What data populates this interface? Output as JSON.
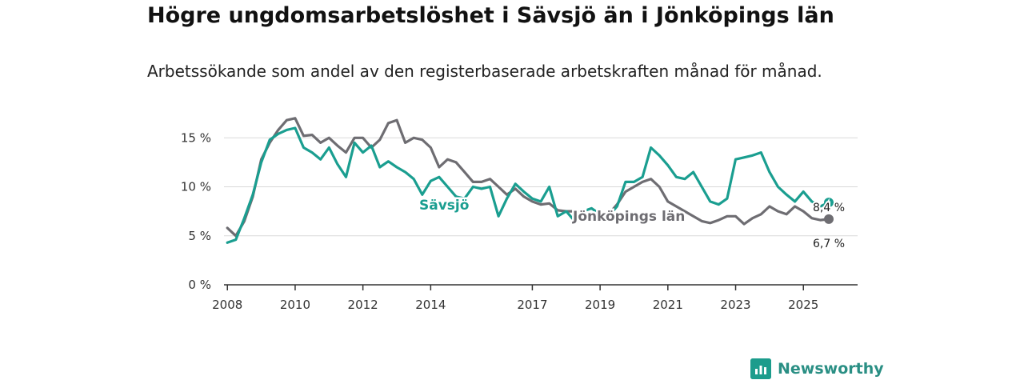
{
  "chart_data": {
    "type": "line",
    "title": "Högre ungdomsarbetslöshet i Sävsjö än i Jönköpings län",
    "subtitle": "Arbetssökande som andel av den registerbaserade arbetskraften månad för månad.",
    "xlabel": "",
    "ylabel": "",
    "xlim": [
      2007.9,
      2026.6
    ],
    "ylim": [
      0,
      16
    ],
    "x_ticks": [
      {
        "value": 2008,
        "label": "2008"
      },
      {
        "value": 2010,
        "label": "2010"
      },
      {
        "value": 2012,
        "label": "2012"
      },
      {
        "value": 2014,
        "label": "2014"
      },
      {
        "value": 2017,
        "label": "2017"
      },
      {
        "value": 2019,
        "label": "2019"
      },
      {
        "value": 2021,
        "label": "2021"
      },
      {
        "value": 2023,
        "label": "2023"
      },
      {
        "value": 2025,
        "label": "2025"
      }
    ],
    "y_ticks": [
      {
        "value": 0,
        "label": "0 %"
      },
      {
        "value": 5,
        "label": "5 %"
      },
      {
        "value": 10,
        "label": "10 %"
      },
      {
        "value": 15,
        "label": "15 %"
      }
    ],
    "series": [
      {
        "name": "Sävsjö",
        "color": "#1a9e90",
        "end_label": "8,4 %",
        "x": [
          2008.0,
          2008.25,
          2008.5,
          2008.75,
          2009.0,
          2009.25,
          2009.5,
          2009.75,
          2010.0,
          2010.25,
          2010.5,
          2010.75,
          2011.0,
          2011.25,
          2011.5,
          2011.75,
          2012.0,
          2012.25,
          2012.5,
          2012.75,
          2013.0,
          2013.25,
          2013.5,
          2013.75,
          2014.0,
          2014.25,
          2014.5,
          2014.75,
          2015.0,
          2015.25,
          2015.5,
          2015.75,
          2016.0,
          2016.25,
          2016.5,
          2016.75,
          2017.0,
          2017.25,
          2017.5,
          2017.75,
          2018.0,
          2018.25,
          2018.5,
          2018.75,
          2019.0,
          2019.25,
          2019.5,
          2019.75,
          2020.0,
          2020.25,
          2020.5,
          2020.75,
          2021.0,
          2021.25,
          2021.5,
          2021.75,
          2022.0,
          2022.25,
          2022.5,
          2022.75,
          2023.0,
          2023.25,
          2023.5,
          2023.75,
          2024.0,
          2024.25,
          2024.5,
          2024.75,
          2025.0,
          2025.25,
          2025.5,
          2025.75
        ],
        "y": [
          4.3,
          4.6,
          6.8,
          9.2,
          12.5,
          14.8,
          15.4,
          15.8,
          16.0,
          14.0,
          13.5,
          12.8,
          14.0,
          12.3,
          11.0,
          14.5,
          13.5,
          14.2,
          12.0,
          12.6,
          12.0,
          11.5,
          10.8,
          9.2,
          10.6,
          11.0,
          10.0,
          9.0,
          8.8,
          10.0,
          9.8,
          10.0,
          7.0,
          8.8,
          10.3,
          9.5,
          8.8,
          8.5,
          10.0,
          7.0,
          7.5,
          6.5,
          7.5,
          7.8,
          7.2,
          7.0,
          8.0,
          10.5,
          10.5,
          11.0,
          14.0,
          13.2,
          12.2,
          11.0,
          10.8,
          11.5,
          10.0,
          8.5,
          8.2,
          8.8,
          12.8,
          13.0,
          13.2,
          13.5,
          11.5,
          10.0,
          9.2,
          8.5,
          9.5,
          8.5,
          8.0,
          8.4
        ]
      },
      {
        "name": "Jönköpings län",
        "color": "#6e6d72",
        "end_label": "6,7 %",
        "x": [
          2008.0,
          2008.25,
          2008.5,
          2008.75,
          2009.0,
          2009.25,
          2009.5,
          2009.75,
          2010.0,
          2010.25,
          2010.5,
          2010.75,
          2011.0,
          2011.25,
          2011.5,
          2011.75,
          2012.0,
          2012.25,
          2012.5,
          2012.75,
          2013.0,
          2013.25,
          2013.5,
          2013.75,
          2014.0,
          2014.25,
          2014.5,
          2014.75,
          2015.0,
          2015.25,
          2015.5,
          2015.75,
          2016.0,
          2016.25,
          2016.5,
          2016.75,
          2017.0,
          2017.25,
          2017.5,
          2017.75,
          2018.0,
          2018.25,
          2018.5,
          2018.75,
          2019.0,
          2019.25,
          2019.5,
          2019.75,
          2020.0,
          2020.25,
          2020.5,
          2020.75,
          2021.0,
          2021.25,
          2021.5,
          2021.75,
          2022.0,
          2022.25,
          2022.5,
          2022.75,
          2023.0,
          2023.25,
          2023.5,
          2023.75,
          2024.0,
          2024.25,
          2024.5,
          2024.75,
          2025.0,
          2025.25,
          2025.5,
          2025.75
        ],
        "y": [
          5.8,
          5.0,
          6.5,
          9.0,
          12.8,
          14.5,
          15.8,
          16.8,
          17.0,
          15.2,
          15.3,
          14.5,
          15.0,
          14.2,
          13.5,
          15.0,
          15.0,
          14.0,
          14.8,
          16.5,
          16.8,
          14.5,
          15.0,
          14.8,
          14.0,
          12.0,
          12.8,
          12.5,
          11.5,
          10.5,
          10.5,
          10.8,
          10.0,
          9.2,
          9.8,
          9.0,
          8.5,
          8.2,
          8.3,
          7.6,
          7.5,
          7.5,
          7.5,
          7.0,
          6.8,
          7.2,
          8.2,
          9.5,
          10.0,
          10.5,
          10.8,
          10.0,
          8.5,
          8.0,
          7.5,
          7.0,
          6.5,
          6.3,
          6.6,
          7.0,
          7.0,
          6.2,
          6.8,
          7.2,
          8.0,
          7.5,
          7.2,
          8.0,
          7.5,
          6.8,
          6.6,
          6.7
        ]
      }
    ]
  },
  "brand": {
    "name": "Newsworthy"
  }
}
